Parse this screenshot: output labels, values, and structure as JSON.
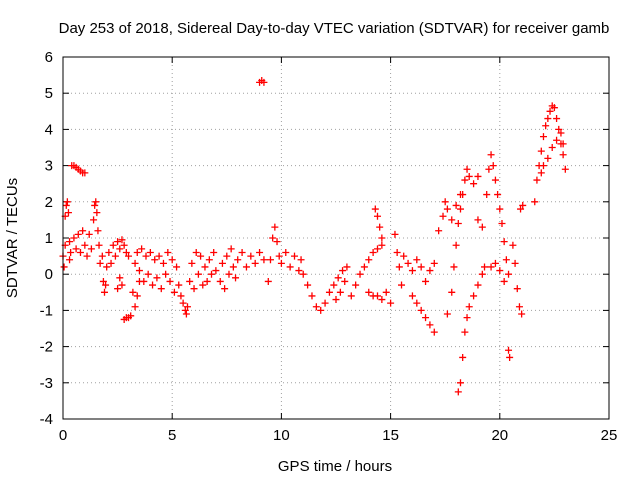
{
  "chart_data": {
    "type": "scatter",
    "title": "Day 253 of 2018, Sidereal Day-to-day VTEC variation (SDTVAR) for receiver gamb",
    "xlabel": "GPS time / hours",
    "ylabel": "SDTVAR / TECUs",
    "xlim": [
      0,
      25
    ],
    "ylim": [
      -4,
      6
    ],
    "xticks": [
      0,
      5,
      10,
      15,
      20,
      25
    ],
    "yticks": [
      -4,
      -3,
      -2,
      -1,
      0,
      1,
      2,
      3,
      4,
      5,
      6
    ],
    "grid": true,
    "marker": "plus",
    "color": "#ff0000",
    "series": [
      {
        "name": "SDTVAR",
        "points": [
          [
            0.0,
            0.5
          ],
          [
            0.05,
            0.2
          ],
          [
            0.1,
            0.8
          ],
          [
            0.1,
            1.6
          ],
          [
            0.15,
            1.9
          ],
          [
            0.2,
            2.0
          ],
          [
            0.25,
            1.7
          ],
          [
            0.3,
            0.4
          ],
          [
            0.3,
            0.9
          ],
          [
            0.35,
            0.6
          ],
          [
            0.4,
            3.0
          ],
          [
            0.5,
            3.0
          ],
          [
            0.6,
            2.95
          ],
          [
            0.7,
            2.9
          ],
          [
            0.8,
            2.85
          ],
          [
            0.9,
            2.8
          ],
          [
            1.0,
            2.8
          ],
          [
            0.5,
            1.0
          ],
          [
            0.6,
            0.7
          ],
          [
            0.7,
            1.1
          ],
          [
            0.8,
            0.6
          ],
          [
            0.9,
            1.2
          ],
          [
            1.0,
            0.8
          ],
          [
            1.1,
            0.5
          ],
          [
            1.2,
            1.1
          ],
          [
            1.3,
            0.7
          ],
          [
            1.4,
            1.5
          ],
          [
            1.45,
            1.9
          ],
          [
            1.5,
            2.0
          ],
          [
            1.55,
            1.7
          ],
          [
            1.6,
            1.2
          ],
          [
            1.65,
            0.8
          ],
          [
            1.7,
            0.3
          ],
          [
            1.8,
            0.5
          ],
          [
            1.85,
            -0.2
          ],
          [
            1.9,
            -0.5
          ],
          [
            1.95,
            -0.3
          ],
          [
            2.0,
            0.2
          ],
          [
            2.1,
            0.6
          ],
          [
            2.2,
            0.3
          ],
          [
            2.3,
            0.8
          ],
          [
            2.4,
            0.5
          ],
          [
            2.5,
            0.9
          ],
          [
            2.6,
            0.7
          ],
          [
            2.7,
            0.95
          ],
          [
            2.8,
            0.8
          ],
          [
            2.9,
            0.6
          ],
          [
            3.0,
            0.5
          ],
          [
            2.5,
            -0.4
          ],
          [
            2.6,
            -0.1
          ],
          [
            2.7,
            -0.3
          ],
          [
            2.8,
            -1.25
          ],
          [
            2.9,
            -1.2
          ],
          [
            3.0,
            -1.2
          ],
          [
            3.1,
            -1.15
          ],
          [
            3.2,
            -0.5
          ],
          [
            3.3,
            -0.9
          ],
          [
            3.4,
            -0.6
          ],
          [
            3.5,
            -0.2
          ],
          [
            3.3,
            0.3
          ],
          [
            3.4,
            0.6
          ],
          [
            3.5,
            0.1
          ],
          [
            3.6,
            0.7
          ],
          [
            3.7,
            -0.2
          ],
          [
            3.8,
            0.5
          ],
          [
            3.9,
            0.0
          ],
          [
            4.0,
            0.6
          ],
          [
            4.1,
            -0.3
          ],
          [
            4.2,
            0.4
          ],
          [
            4.3,
            -0.1
          ],
          [
            4.4,
            0.5
          ],
          [
            4.5,
            -0.4
          ],
          [
            4.6,
            0.3
          ],
          [
            4.7,
            0.0
          ],
          [
            4.8,
            0.6
          ],
          [
            4.9,
            -0.2
          ],
          [
            5.0,
            0.4
          ],
          [
            5.1,
            -0.5
          ],
          [
            5.2,
            0.2
          ],
          [
            5.3,
            -0.3
          ],
          [
            5.4,
            -0.6
          ],
          [
            5.5,
            -0.8
          ],
          [
            5.6,
            -1.0
          ],
          [
            5.65,
            -1.1
          ],
          [
            5.7,
            -0.9
          ],
          [
            5.8,
            -0.2
          ],
          [
            5.9,
            0.3
          ],
          [
            6.0,
            -0.4
          ],
          [
            6.1,
            0.6
          ],
          [
            6.2,
            0.0
          ],
          [
            6.3,
            0.5
          ],
          [
            6.4,
            -0.3
          ],
          [
            6.5,
            0.2
          ],
          [
            6.6,
            -0.2
          ],
          [
            6.7,
            0.4
          ],
          [
            6.8,
            0.0
          ],
          [
            6.9,
            0.6
          ],
          [
            7.0,
            0.1
          ],
          [
            7.2,
            -0.2
          ],
          [
            7.3,
            0.3
          ],
          [
            7.4,
            -0.4
          ],
          [
            7.5,
            0.5
          ],
          [
            7.6,
            0.0
          ],
          [
            7.7,
            0.7
          ],
          [
            7.8,
            0.2
          ],
          [
            7.9,
            -0.1
          ],
          [
            8.0,
            0.4
          ],
          [
            8.2,
            0.6
          ],
          [
            8.4,
            0.2
          ],
          [
            8.6,
            0.5
          ],
          [
            8.8,
            0.3
          ],
          [
            9.0,
            0.6
          ],
          [
            9.2,
            0.4
          ],
          [
            9.0,
            5.3
          ],
          [
            9.1,
            5.35
          ],
          [
            9.2,
            5.3
          ],
          [
            9.4,
            -0.2
          ],
          [
            9.5,
            0.4
          ],
          [
            9.6,
            1.0
          ],
          [
            9.7,
            1.3
          ],
          [
            9.8,
            0.9
          ],
          [
            9.9,
            0.5
          ],
          [
            10.0,
            0.3
          ],
          [
            10.2,
            0.6
          ],
          [
            10.4,
            0.2
          ],
          [
            10.6,
            0.5
          ],
          [
            10.8,
            0.1
          ],
          [
            10.9,
            0.4
          ],
          [
            11.0,
            0.0
          ],
          [
            11.2,
            -0.3
          ],
          [
            11.4,
            -0.6
          ],
          [
            11.6,
            -0.9
          ],
          [
            11.8,
            -1.0
          ],
          [
            12.0,
            -0.8
          ],
          [
            12.2,
            -0.5
          ],
          [
            12.4,
            -0.3
          ],
          [
            12.6,
            -0.1
          ],
          [
            12.8,
            0.1
          ],
          [
            13.0,
            0.2
          ],
          [
            12.5,
            -0.7
          ],
          [
            12.7,
            -0.5
          ],
          [
            12.9,
            -0.2
          ],
          [
            13.2,
            -0.6
          ],
          [
            13.4,
            -0.3
          ],
          [
            13.6,
            0.0
          ],
          [
            13.8,
            0.2
          ],
          [
            14.0,
            0.4
          ],
          [
            14.2,
            0.6
          ],
          [
            14.4,
            0.7
          ],
          [
            14.6,
            0.8
          ],
          [
            14.3,
            1.8
          ],
          [
            14.4,
            1.6
          ],
          [
            14.5,
            1.3
          ],
          [
            14.6,
            1.0
          ],
          [
            14.0,
            -0.5
          ],
          [
            14.2,
            -0.6
          ],
          [
            14.4,
            -0.6
          ],
          [
            14.6,
            -0.7
          ],
          [
            14.8,
            -0.5
          ],
          [
            15.0,
            -0.8
          ],
          [
            15.2,
            1.1
          ],
          [
            15.3,
            0.6
          ],
          [
            15.4,
            0.2
          ],
          [
            15.5,
            -0.3
          ],
          [
            15.6,
            0.5
          ],
          [
            15.8,
            0.3
          ],
          [
            16.0,
            0.1
          ],
          [
            16.2,
            0.4
          ],
          [
            16.4,
            0.2
          ],
          [
            16.6,
            -0.2
          ],
          [
            16.8,
            0.1
          ],
          [
            17.0,
            0.3
          ],
          [
            16.0,
            -0.6
          ],
          [
            16.2,
            -0.8
          ],
          [
            16.4,
            -1.0
          ],
          [
            16.6,
            -1.2
          ],
          [
            16.8,
            -1.4
          ],
          [
            17.0,
            -1.6
          ],
          [
            17.2,
            1.2
          ],
          [
            17.4,
            1.6
          ],
          [
            17.5,
            2.0
          ],
          [
            17.6,
            1.8
          ],
          [
            17.8,
            1.5
          ],
          [
            18.0,
            1.9
          ],
          [
            18.2,
            2.2
          ],
          [
            18.4,
            2.6
          ],
          [
            18.5,
            2.9
          ],
          [
            18.6,
            2.7
          ],
          [
            18.8,
            2.5
          ],
          [
            19.0,
            2.7
          ],
          [
            17.6,
            -1.1
          ],
          [
            17.8,
            -0.5
          ],
          [
            17.9,
            0.2
          ],
          [
            18.0,
            0.8
          ],
          [
            18.1,
            1.4
          ],
          [
            18.2,
            1.8
          ],
          [
            18.3,
            2.2
          ],
          [
            18.1,
            -3.25
          ],
          [
            18.2,
            -3.0
          ],
          [
            18.3,
            -2.3
          ],
          [
            18.4,
            -1.6
          ],
          [
            18.5,
            -1.2
          ],
          [
            18.6,
            -0.9
          ],
          [
            18.8,
            -0.6
          ],
          [
            19.0,
            -0.3
          ],
          [
            19.2,
            0.0
          ],
          [
            19.3,
            0.2
          ],
          [
            19.0,
            1.5
          ],
          [
            19.2,
            1.3
          ],
          [
            19.4,
            2.2
          ],
          [
            19.5,
            2.9
          ],
          [
            19.6,
            3.3
          ],
          [
            19.7,
            3.0
          ],
          [
            19.8,
            2.6
          ],
          [
            19.9,
            2.2
          ],
          [
            20.0,
            1.8
          ],
          [
            20.1,
            1.4
          ],
          [
            20.2,
            0.9
          ],
          [
            20.3,
            0.4
          ],
          [
            19.6,
            0.2
          ],
          [
            19.8,
            0.3
          ],
          [
            20.0,
            0.1
          ],
          [
            20.2,
            -0.2
          ],
          [
            20.4,
            0.0
          ],
          [
            20.4,
            -2.1
          ],
          [
            20.45,
            -2.3
          ],
          [
            20.6,
            0.8
          ],
          [
            20.7,
            0.3
          ],
          [
            20.8,
            -0.4
          ],
          [
            20.9,
            -0.9
          ],
          [
            21.0,
            -1.1
          ],
          [
            20.95,
            1.8
          ],
          [
            21.05,
            1.9
          ],
          [
            21.6,
            2.0
          ],
          [
            21.7,
            2.6
          ],
          [
            21.8,
            3.0
          ],
          [
            21.9,
            3.4
          ],
          [
            22.0,
            3.8
          ],
          [
            22.1,
            4.1
          ],
          [
            22.2,
            4.3
          ],
          [
            22.3,
            4.5
          ],
          [
            22.4,
            4.65
          ],
          [
            22.5,
            4.6
          ],
          [
            22.6,
            4.3
          ],
          [
            22.7,
            4.0
          ],
          [
            22.8,
            3.6
          ],
          [
            22.9,
            3.3
          ],
          [
            23.0,
            2.9
          ],
          [
            21.9,
            2.8
          ],
          [
            22.0,
            3.0
          ],
          [
            22.2,
            3.2
          ],
          [
            22.4,
            3.5
          ],
          [
            22.6,
            3.7
          ],
          [
            22.8,
            3.9
          ],
          [
            22.9,
            3.6
          ]
        ]
      }
    ]
  }
}
